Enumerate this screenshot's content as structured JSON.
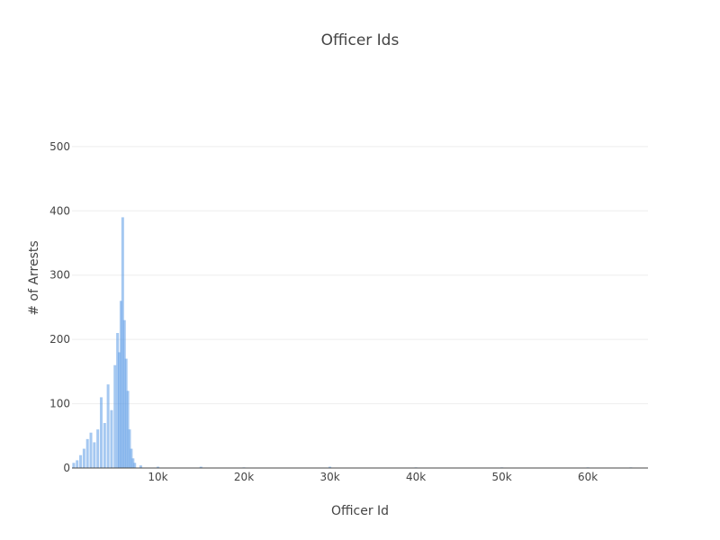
{
  "chart_data": {
    "type": "bar",
    "title": "Officer Ids",
    "xlabel": "Officer Id",
    "ylabel": "# of Arrests",
    "xlim": [
      0,
      67000
    ],
    "ylim": [
      0,
      525
    ],
    "x_ticks": [
      10000,
      20000,
      30000,
      40000,
      50000,
      60000
    ],
    "x_tick_labels": [
      "10k",
      "20k",
      "30k",
      "40k",
      "50k",
      "60k"
    ],
    "y_ticks": [
      0,
      100,
      200,
      300,
      400,
      500
    ],
    "y_tick_labels": [
      "0",
      "100",
      "200",
      "300",
      "400",
      "500"
    ],
    "grid": true,
    "legend": "none",
    "colors": {
      "bar": "#5b9be6",
      "grid": "#eeeeee",
      "axis": "#444444",
      "text": "#444444"
    },
    "series": [
      {
        "x": [
          200,
          600,
          1000,
          1400,
          1800,
          2200,
          2600,
          3000,
          3400,
          3800,
          4200,
          4600,
          5000,
          5300,
          5500,
          5700,
          5900,
          6100,
          6300,
          6500,
          6700,
          6900,
          7100,
          7300,
          8000,
          10000,
          15000,
          20000,
          30000,
          40000,
          50000,
          60000,
          65000
        ],
        "values": [
          8,
          12,
          20,
          30,
          45,
          55,
          40,
          60,
          110,
          70,
          130,
          90,
          160,
          210,
          180,
          260,
          390,
          230,
          170,
          120,
          60,
          30,
          15,
          8,
          4,
          2,
          2,
          1,
          2,
          1,
          1,
          1,
          1
        ]
      }
    ]
  }
}
